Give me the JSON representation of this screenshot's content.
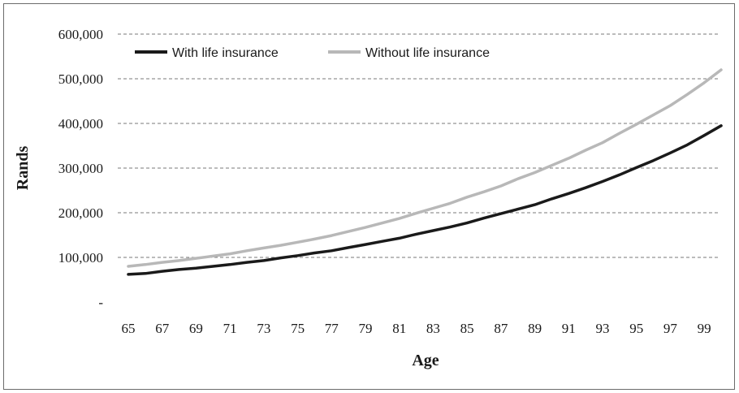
{
  "chart_data": {
    "type": "line",
    "xlabel": "Age",
    "ylabel": "Rands",
    "ylim": [
      0,
      600000
    ],
    "yticks": [
      0,
      100000,
      200000,
      300000,
      400000,
      500000,
      600000
    ],
    "ytick_labels": [
      "-",
      "100,000",
      "200,000",
      "300,000",
      "400,000",
      "500,000",
      "600,000"
    ],
    "xticks": [
      65,
      67,
      69,
      71,
      73,
      75,
      77,
      79,
      81,
      83,
      85,
      87,
      89,
      91,
      93,
      95,
      97,
      99
    ],
    "xlim": [
      65,
      100
    ],
    "grid": "horizontal dashed",
    "legend_position": "top-left",
    "x": [
      65,
      66,
      67,
      68,
      69,
      70,
      71,
      72,
      73,
      74,
      75,
      76,
      77,
      78,
      79,
      80,
      81,
      82,
      83,
      84,
      85,
      86,
      87,
      88,
      89,
      90,
      91,
      92,
      93,
      94,
      95,
      96,
      97,
      98,
      99,
      100
    ],
    "series": [
      {
        "name": "With life insurance",
        "color": "#1a1a1a",
        "values": [
          62000,
          64000,
          69000,
          73000,
          76000,
          80000,
          84000,
          89000,
          93000,
          99000,
          104000,
          110000,
          115000,
          122000,
          129000,
          136000,
          143000,
          152000,
          160000,
          168000,
          177000,
          188000,
          198000,
          208000,
          218000,
          231000,
          243000,
          256000,
          270000,
          285000,
          301000,
          317000,
          334000,
          352000,
          373000,
          395000
        ]
      },
      {
        "name": "Without life insurance",
        "color": "#b8b8b8",
        "values": [
          80000,
          84000,
          89000,
          93000,
          98000,
          103000,
          108000,
          115000,
          121000,
          127000,
          134000,
          141000,
          149000,
          158000,
          167000,
          177000,
          187000,
          199000,
          210000,
          221000,
          235000,
          247000,
          260000,
          276000,
          290000,
          306000,
          322000,
          340000,
          357000,
          378000,
          398000,
          419000,
          440000,
          465000,
          491000,
          520000
        ]
      }
    ]
  }
}
